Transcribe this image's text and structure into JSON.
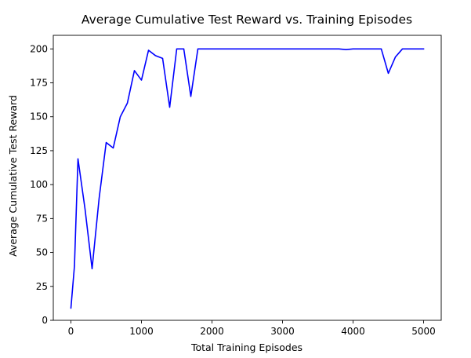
{
  "chart_data": {
    "type": "line",
    "title": "Average Cumulative Test Reward vs. Training Episodes",
    "xlabel": "Total Training Episodes",
    "ylabel": "Average Cumulative Test Reward",
    "xlim": [
      -250,
      5250
    ],
    "ylim": [
      0,
      210
    ],
    "xticks": [
      0,
      1000,
      2000,
      3000,
      4000,
      5000
    ],
    "yticks": [
      0,
      25,
      50,
      75,
      100,
      125,
      150,
      175,
      200
    ],
    "grid": false,
    "legend": "none",
    "series": [
      {
        "color": "#0000ff",
        "x": [
          0,
          50,
          100,
          200,
          300,
          400,
          500,
          600,
          700,
          800,
          900,
          1000,
          1100,
          1200,
          1300,
          1400,
          1500,
          1600,
          1700,
          1800,
          1900,
          2000,
          2500,
          3000,
          3500,
          3800,
          3900,
          4000,
          4100,
          4200,
          4300,
          4400,
          4500,
          4600,
          4700,
          4800,
          4900,
          5000
        ],
        "y": [
          9,
          40,
          119,
          82,
          38,
          90,
          131,
          127,
          150,
          160,
          184,
          177,
          199,
          195,
          193,
          157,
          200,
          200,
          165,
          200,
          200,
          200,
          200,
          200,
          200,
          200,
          199.5,
          200,
          200,
          200,
          200,
          200,
          182,
          194,
          200,
          200,
          200,
          200
        ]
      }
    ]
  }
}
